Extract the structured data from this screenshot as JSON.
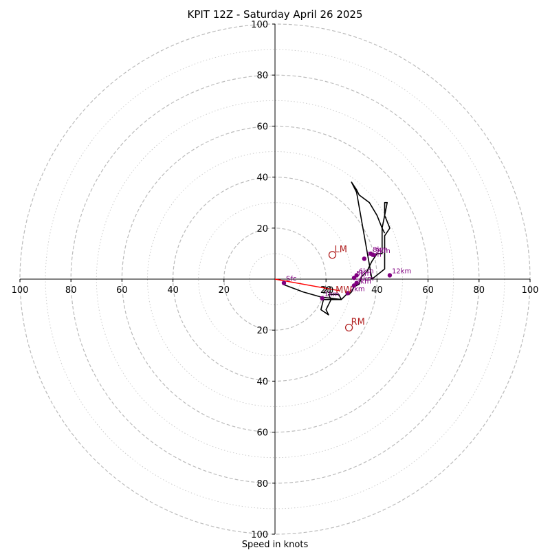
{
  "chart_data": {
    "type": "scatter",
    "subtype": "hodograph",
    "title": "KPIT 12Z - Saturday April 26 2025",
    "xlabel": "Speed in knots",
    "ylabel": "",
    "xlim": [
      -100,
      100
    ],
    "ylim": [
      -100,
      100
    ],
    "ring_major": [
      20,
      40,
      60,
      80,
      100
    ],
    "ring_minor": [
      10,
      30,
      50,
      70,
      90
    ],
    "x_ticks": [
      "100",
      "80",
      "60",
      "40",
      "20",
      "20",
      "40",
      "60",
      "80",
      "100"
    ],
    "y_ticks": [
      "100",
      "80",
      "60",
      "40",
      "20",
      "20",
      "40",
      "60",
      "80",
      "100"
    ],
    "x_tick_values": [
      -100,
      -80,
      -60,
      -40,
      -20,
      20,
      40,
      60,
      80,
      100
    ],
    "y_tick_values": [
      100,
      80,
      60,
      40,
      20,
      -20,
      -40,
      -60,
      -80,
      -100
    ],
    "colors": {
      "trace": "#000000",
      "height_marker": "#800080",
      "motion": "#b22222",
      "shear_vector": "#ff0000",
      "grid": "#bbbbbb"
    },
    "trace": {
      "name": "",
      "x": [
        3,
        11,
        18,
        26,
        19,
        18,
        21,
        20,
        22,
        21,
        25,
        26,
        28,
        29,
        30,
        31,
        33,
        34,
        36,
        38,
        40,
        42,
        42,
        42,
        43,
        44,
        43,
        43,
        45,
        43,
        43,
        43,
        43,
        38,
        32,
        30,
        32,
        33,
        37,
        40,
        42,
        43
      ],
      "y": [
        -2,
        -5,
        -7,
        -8,
        -8,
        -12,
        -14,
        -12,
        -8,
        -6,
        -6,
        -8,
        -6,
        -6,
        -5,
        -3,
        -2,
        1,
        3,
        7,
        10,
        10,
        15,
        20,
        25,
        30,
        30,
        25,
        20,
        17,
        12,
        8,
        4,
        0,
        34,
        38,
        35,
        33,
        30,
        25,
        20,
        18
      ]
    },
    "height_markers": [
      {
        "label": "Sfc",
        "x": 3.5,
        "y": -1.5
      },
      {
        "label": "1km",
        "x": 18.5,
        "y": -7.5
      },
      {
        "label": "2km",
        "x": 28.5,
        "y": -5.5
      },
      {
        "label": "3km",
        "x": 31,
        "y": -2.5
      },
      {
        "label": "4km",
        "x": 32,
        "y": -1.5
      },
      {
        "label": "5km",
        "x": 31,
        "y": 0.5
      },
      {
        "label": "6km",
        "x": 32,
        "y": 1.5
      },
      {
        "label": "7km",
        "x": 35,
        "y": 8
      },
      {
        "label": "8km",
        "x": 37.5,
        "y": 10
      },
      {
        "label": "9km",
        "x": 38.5,
        "y": 9.5
      },
      {
        "label": "12km",
        "x": 45,
        "y": 1.5
      }
    ],
    "storm_motion": [
      {
        "label": "LM",
        "x": 22.5,
        "y": 9.5
      },
      {
        "label": "RM",
        "x": 29,
        "y": -19
      }
    ],
    "mean_wind": {
      "label": "MW",
      "x": 27,
      "y": -4
    },
    "shear_vector": {
      "label": "20",
      "x_start": 0,
      "y_start": 0,
      "x_end": 25,
      "y_end": -4.5
    }
  }
}
